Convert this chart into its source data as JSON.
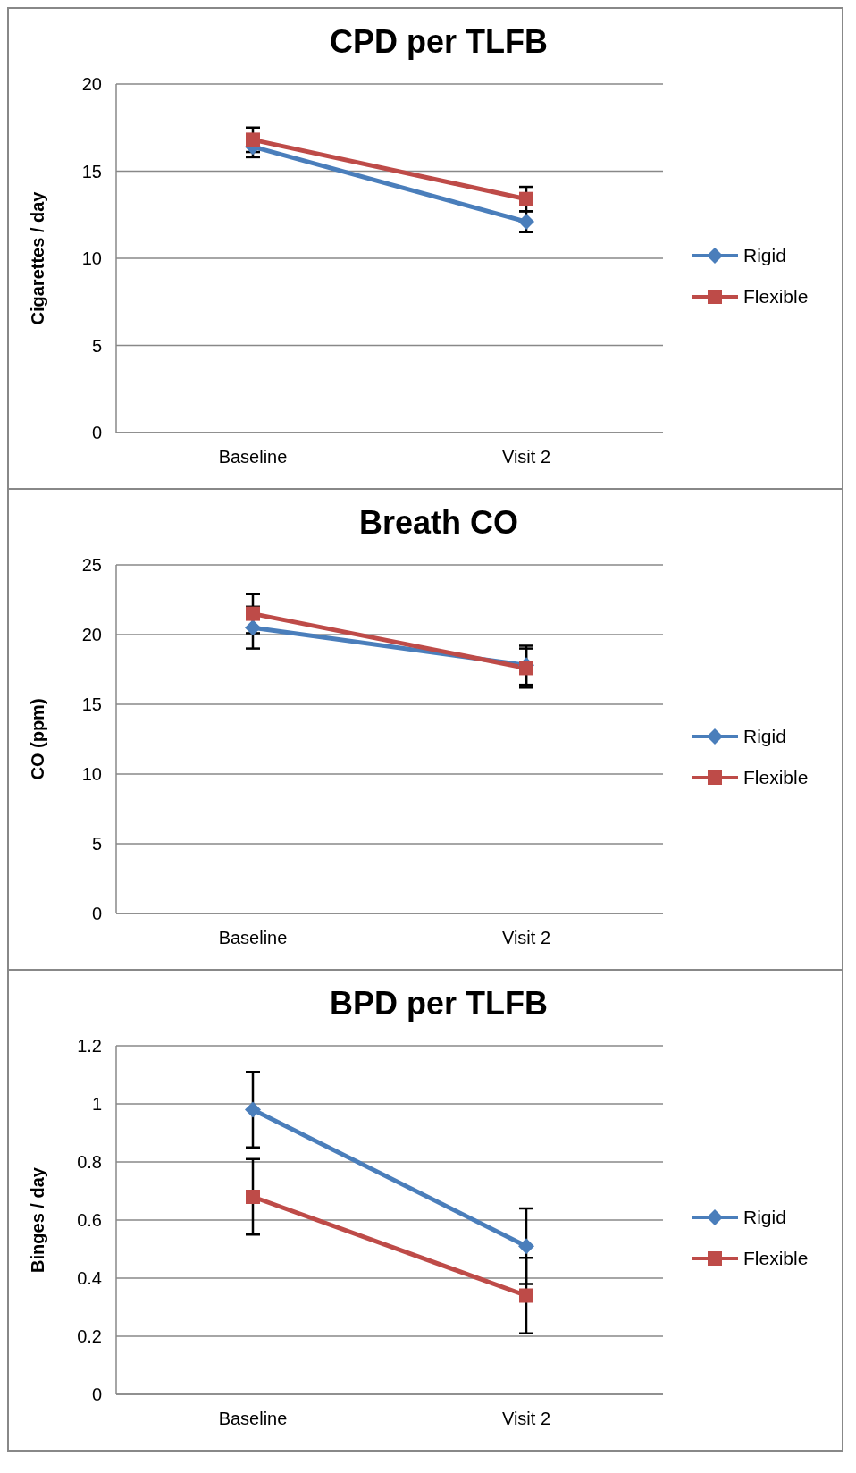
{
  "chart_data": [
    {
      "type": "line",
      "title": "CPD per TLFB",
      "ylabel": "Cigarettes / day",
      "categories": [
        "Baseline",
        "Visit 2"
      ],
      "ylim": [
        0,
        20
      ],
      "yticks": [
        0,
        5,
        10,
        15,
        20
      ],
      "grid": "y",
      "legend": "right",
      "series": [
        {
          "name": "Rigid",
          "color": "#4a7ebb",
          "marker": "diamond",
          "values": [
            16.4,
            12.1
          ],
          "errors": [
            0.6,
            0.6
          ]
        },
        {
          "name": "Flexible",
          "color": "#be4b48",
          "marker": "square",
          "values": [
            16.8,
            13.4
          ],
          "errors": [
            0.7,
            0.7
          ]
        }
      ]
    },
    {
      "type": "line",
      "title": "Breath CO",
      "ylabel": "CO (ppm)",
      "categories": [
        "Baseline",
        "Visit 2"
      ],
      "ylim": [
        0,
        25
      ],
      "yticks": [
        0,
        5,
        10,
        15,
        20,
        25
      ],
      "grid": "y",
      "legend": "right",
      "series": [
        {
          "name": "Rigid",
          "color": "#4a7ebb",
          "marker": "diamond",
          "values": [
            20.5,
            17.8
          ],
          "errors": [
            1.5,
            1.4
          ]
        },
        {
          "name": "Flexible",
          "color": "#be4b48",
          "marker": "square",
          "values": [
            21.5,
            17.6
          ],
          "errors": [
            1.4,
            1.4
          ]
        }
      ]
    },
    {
      "type": "line",
      "title": "BPD per TLFB",
      "ylabel": "Binges / day",
      "categories": [
        "Baseline",
        "Visit 2"
      ],
      "ylim": [
        0,
        1.2
      ],
      "yticks": [
        0,
        0.2,
        0.4,
        0.6,
        0.8,
        1,
        1.2
      ],
      "grid": "y",
      "legend": "right",
      "series": [
        {
          "name": "Rigid",
          "color": "#4a7ebb",
          "marker": "diamond",
          "values": [
            0.98,
            0.51
          ],
          "errors": [
            0.13,
            0.13
          ]
        },
        {
          "name": "Flexible",
          "color": "#be4b48",
          "marker": "square",
          "values": [
            0.68,
            0.34
          ],
          "errors": [
            0.13,
            0.13
          ]
        }
      ]
    }
  ]
}
